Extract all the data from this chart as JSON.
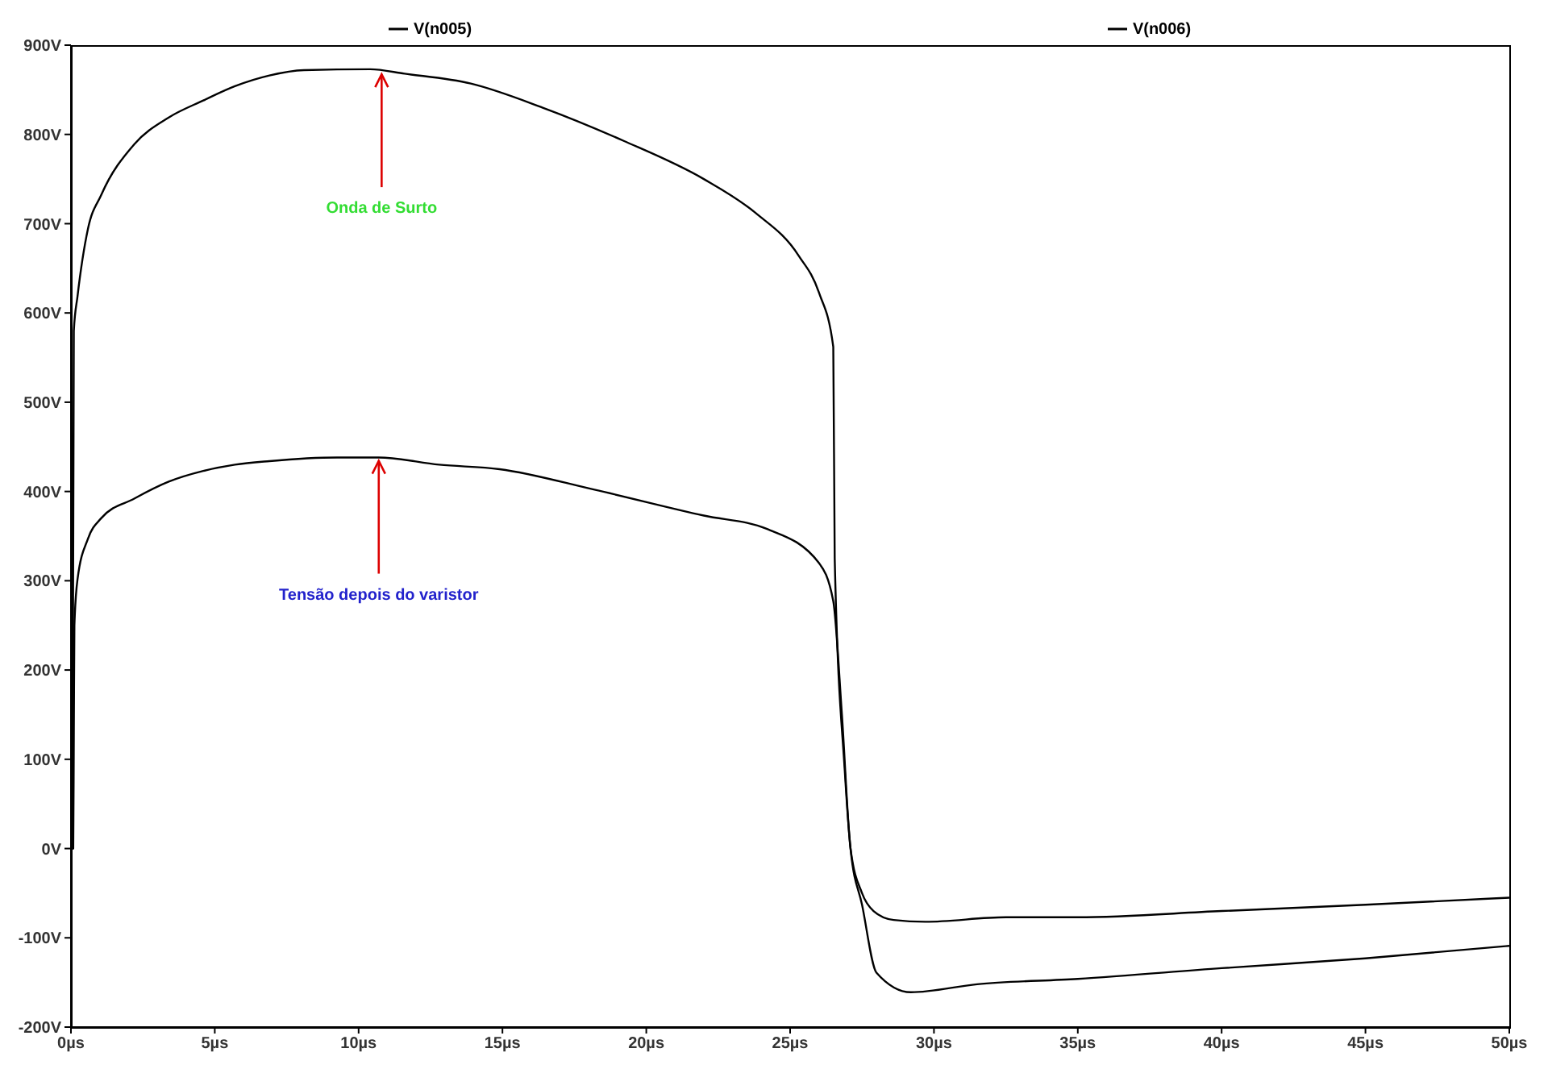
{
  "chart_data": {
    "type": "line",
    "series": [
      {
        "name": "V(n005)",
        "color": "#000000",
        "x": [
          0,
          0.05,
          0.1,
          0.23,
          0.59,
          1.05,
          2.2,
          3.4,
          4.6,
          5.7,
          6.9,
          8.1,
          10.4,
          11.6,
          13.9,
          16.4,
          19.2,
          22,
          23.8,
          25.3,
          26,
          26.5,
          26.55,
          26.9,
          27.1,
          27.5,
          28,
          29.2,
          31.5,
          35,
          40,
          45,
          50
        ],
        "values": [
          0,
          0,
          580,
          619,
          694,
          732,
          789,
          819,
          838,
          854,
          866,
          872,
          873,
          868,
          857,
          830,
          793,
          750,
          712,
          664,
          623,
          562,
          325,
          87,
          0,
          -63,
          -139,
          -161,
          -152,
          -146,
          -134,
          -123,
          -109
        ]
      },
      {
        "name": "V(n006)",
        "color": "#000000",
        "x": [
          0,
          0.08,
          0.1,
          0.12,
          0.23,
          0.59,
          1.05,
          2.2,
          3.4,
          4.6,
          5.7,
          6.9,
          9.25,
          10.7,
          12.8,
          14.9,
          18.2,
          22,
          24.2,
          26,
          26.5,
          26.8,
          27.1,
          27.5,
          27.9,
          28.6,
          29.7,
          32.5,
          35,
          40,
          45,
          50
        ],
        "values": [
          0,
          0,
          130,
          250,
          302,
          347,
          370,
          392,
          411,
          423,
          430,
          434,
          438,
          438,
          430,
          425,
          402,
          373,
          358,
          320,
          277,
          150,
          0,
          -50,
          -70,
          -80,
          -82,
          -77,
          -77,
          -70,
          -63,
          -55
        ]
      }
    ],
    "xlim": [
      0,
      50
    ],
    "xticks": [
      {
        "value": 0,
        "label": "0µs"
      },
      {
        "value": 5,
        "label": "5µs"
      },
      {
        "value": 10,
        "label": "10µs"
      },
      {
        "value": 15,
        "label": "15µs"
      },
      {
        "value": 20,
        "label": "20µs"
      },
      {
        "value": 25,
        "label": "25µs"
      },
      {
        "value": 30,
        "label": "30µs"
      },
      {
        "value": 35,
        "label": "35µs"
      },
      {
        "value": 40,
        "label": "40µs"
      },
      {
        "value": 45,
        "label": "45µs"
      },
      {
        "value": 50,
        "label": "50µs"
      }
    ],
    "ylim": [
      -200,
      900
    ],
    "yticks": [
      {
        "value": -200,
        "label": "-200V"
      },
      {
        "value": -100,
        "label": "-100V"
      },
      {
        "value": 0,
        "label": "0V"
      },
      {
        "value": 100,
        "label": "100V"
      },
      {
        "value": 200,
        "label": "200V"
      },
      {
        "value": 300,
        "label": "300V"
      },
      {
        "value": 400,
        "label": "400V"
      },
      {
        "value": 500,
        "label": "500V"
      },
      {
        "value": 600,
        "label": "600V"
      },
      {
        "value": 700,
        "label": "700V"
      },
      {
        "value": 800,
        "label": "800V"
      },
      {
        "value": 900,
        "label": "900V"
      }
    ],
    "legend": "top",
    "grid": false,
    "annotations": [
      {
        "text": "Onda de Surto",
        "x": 10.8,
        "y": 871
      },
      {
        "text": "Tensão depois do varistor",
        "x": 10.7,
        "y": 438
      }
    ]
  }
}
